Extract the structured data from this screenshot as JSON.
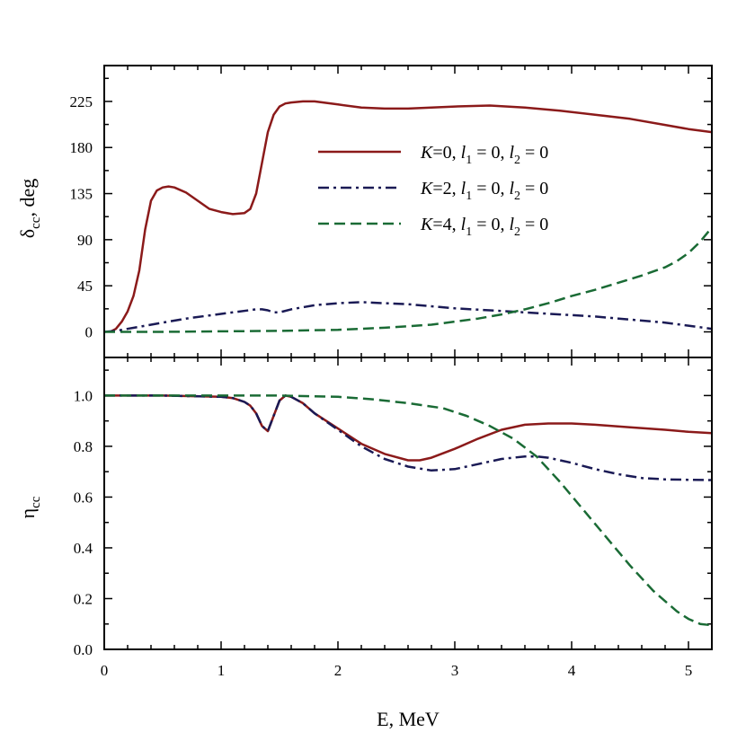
{
  "chart_data": [
    {
      "panel": "top",
      "type": "line",
      "ylabel": "δ",
      "ylabel_sub": "cc",
      "ylabel_unit": ", deg",
      "xlim": [
        0,
        5.2
      ],
      "ylim": [
        -25,
        260
      ],
      "yticks": [
        0,
        45,
        90,
        135,
        180,
        225
      ],
      "ytick_labels": [
        "0",
        "45",
        "90",
        "135",
        "180",
        "225"
      ],
      "minor_yticks": [
        22.5,
        67.5,
        112.5,
        157.5,
        202.5,
        247.5
      ],
      "legend_position": "upper-right",
      "series": [
        {
          "name": "K=0, l1 = 0, l2 = 0",
          "legend_parts": [
            "K",
            "=0, ",
            "l",
            "1",
            " = 0, ",
            "l",
            "2",
            " = 0"
          ],
          "color": "#8b1a1a",
          "dash": "solid",
          "x": [
            0.05,
            0.1,
            0.15,
            0.2,
            0.25,
            0.3,
            0.35,
            0.4,
            0.45,
            0.5,
            0.55,
            0.6,
            0.7,
            0.8,
            0.9,
            1.0,
            1.1,
            1.2,
            1.25,
            1.3,
            1.35,
            1.4,
            1.45,
            1.5,
            1.55,
            1.6,
            1.7,
            1.8,
            2.0,
            2.2,
            2.4,
            2.6,
            2.8,
            3.0,
            3.3,
            3.6,
            3.9,
            4.2,
            4.5,
            4.8,
            5.0,
            5.2
          ],
          "y": [
            0,
            3,
            10,
            20,
            35,
            60,
            100,
            128,
            138,
            141,
            142,
            141,
            136,
            128,
            120,
            117,
            115,
            116,
            120,
            135,
            165,
            195,
            212,
            220,
            223,
            224,
            225,
            225,
            222,
            219,
            218,
            218,
            219,
            220,
            221,
            219,
            216,
            212,
            208,
            202,
            198,
            195
          ]
        },
        {
          "name": "K=2, l1 = 0, l2 = 0",
          "legend_parts": [
            "K",
            "=2, ",
            "l",
            "1",
            " = 0, ",
            "l",
            "2",
            " = 0"
          ],
          "color": "#1a1a55",
          "dash": "12,5,3,5",
          "x": [
            0.0,
            0.1,
            0.3,
            0.5,
            0.7,
            0.9,
            1.1,
            1.3,
            1.35,
            1.4,
            1.45,
            1.5,
            1.6,
            1.8,
            2.0,
            2.2,
            2.4,
            2.6,
            2.8,
            3.0,
            3.3,
            3.6,
            3.9,
            4.2,
            4.5,
            4.8,
            5.0,
            5.2
          ],
          "y": [
            0,
            1,
            5,
            9,
            13,
            16,
            19,
            22,
            22,
            21,
            19,
            19,
            22,
            26,
            28,
            29,
            28,
            27,
            25,
            23,
            21,
            19,
            17,
            15,
            12,
            9,
            6,
            3
          ]
        },
        {
          "name": "K=4, l1 = 0, l2 = 0",
          "legend_parts": [
            "K",
            "=4, ",
            "l",
            "1",
            " = 0, ",
            "l",
            "2",
            " = 0"
          ],
          "color": "#1a6b35",
          "dash": "12,6",
          "x": [
            0.0,
            0.5,
            1.0,
            1.5,
            2.0,
            2.4,
            2.8,
            3.0,
            3.2,
            3.4,
            3.6,
            3.8,
            4.0,
            4.2,
            4.4,
            4.6,
            4.8,
            4.9,
            5.0,
            5.1,
            5.2
          ],
          "y": [
            0,
            0,
            0.5,
            1,
            2,
            4,
            7,
            10,
            13,
            17,
            22,
            28,
            35,
            41,
            48,
            55,
            63,
            69,
            77,
            88,
            102
          ]
        }
      ]
    },
    {
      "panel": "bottom",
      "type": "line",
      "ylabel": "η",
      "ylabel_sub": "cc",
      "xlabel": "E, MeV",
      "xlim": [
        0,
        5.2
      ],
      "ylim": [
        0,
        1.15
      ],
      "xticks": [
        0,
        1,
        2,
        3,
        4,
        5
      ],
      "xtick_labels": [
        "0",
        "1",
        "2",
        "3",
        "4",
        "5"
      ],
      "minor_xticks": [
        0.2,
        0.4,
        0.6,
        0.8,
        1.2,
        1.4,
        1.6,
        1.8,
        2.2,
        2.4,
        2.6,
        2.8,
        3.2,
        3.4,
        3.6,
        3.8,
        4.2,
        4.4,
        4.6,
        4.8,
        5.2
      ],
      "yticks": [
        0,
        0.2,
        0.4,
        0.6,
        0.8,
        1.0
      ],
      "ytick_labels": [
        "0.0",
        "0.2",
        "0.4",
        "0.6",
        "0.8",
        "1.0"
      ],
      "minor_yticks": [
        0.1,
        0.3,
        0.5,
        0.7,
        0.9,
        1.1
      ],
      "series": [
        {
          "name": "K=0, l1 = 0, l2 = 0",
          "color": "#8b1a1a",
          "dash": "solid",
          "x": [
            0.0,
            0.5,
            1.0,
            1.1,
            1.2,
            1.25,
            1.3,
            1.35,
            1.4,
            1.45,
            1.5,
            1.55,
            1.6,
            1.7,
            1.8,
            2.0,
            2.2,
            2.4,
            2.6,
            2.7,
            2.8,
            3.0,
            3.2,
            3.4,
            3.6,
            3.8,
            4.0,
            4.2,
            4.5,
            4.8,
            5.0,
            5.2
          ],
          "y": [
            1.0,
            1.0,
            0.995,
            0.99,
            0.975,
            0.96,
            0.93,
            0.88,
            0.86,
            0.92,
            0.98,
            1.0,
            0.995,
            0.97,
            0.93,
            0.87,
            0.81,
            0.77,
            0.745,
            0.745,
            0.755,
            0.79,
            0.83,
            0.865,
            0.885,
            0.89,
            0.89,
            0.885,
            0.875,
            0.865,
            0.857,
            0.852
          ]
        },
        {
          "name": "K=2, l1 = 0, l2 = 0",
          "color": "#1a1a55",
          "dash": "12,5,3,5",
          "x": [
            0.0,
            0.5,
            1.0,
            1.1,
            1.2,
            1.25,
            1.3,
            1.35,
            1.4,
            1.45,
            1.5,
            1.55,
            1.6,
            1.7,
            1.8,
            2.0,
            2.2,
            2.4,
            2.6,
            2.8,
            3.0,
            3.2,
            3.4,
            3.6,
            3.7,
            3.8,
            4.0,
            4.2,
            4.4,
            4.6,
            4.8,
            5.0,
            5.2
          ],
          "y": [
            1.0,
            1.0,
            0.995,
            0.99,
            0.975,
            0.96,
            0.93,
            0.88,
            0.86,
            0.92,
            0.98,
            1.0,
            0.995,
            0.97,
            0.93,
            0.865,
            0.8,
            0.75,
            0.72,
            0.705,
            0.71,
            0.73,
            0.75,
            0.76,
            0.76,
            0.755,
            0.735,
            0.71,
            0.69,
            0.675,
            0.67,
            0.668,
            0.667
          ]
        },
        {
          "name": "K=4, l1 = 0, l2 = 0",
          "color": "#1a6b35",
          "dash": "12,6",
          "x": [
            0.0,
            0.5,
            1.0,
            1.5,
            2.0,
            2.3,
            2.6,
            2.9,
            3.1,
            3.3,
            3.5,
            3.7,
            3.9,
            4.1,
            4.3,
            4.5,
            4.7,
            4.9,
            5.0,
            5.1,
            5.2
          ],
          "y": [
            1.0,
            1.0,
            1.0,
            1.0,
            0.995,
            0.985,
            0.97,
            0.95,
            0.92,
            0.88,
            0.83,
            0.76,
            0.66,
            0.55,
            0.44,
            0.33,
            0.23,
            0.15,
            0.12,
            0.1,
            0.095
          ]
        }
      ]
    }
  ]
}
